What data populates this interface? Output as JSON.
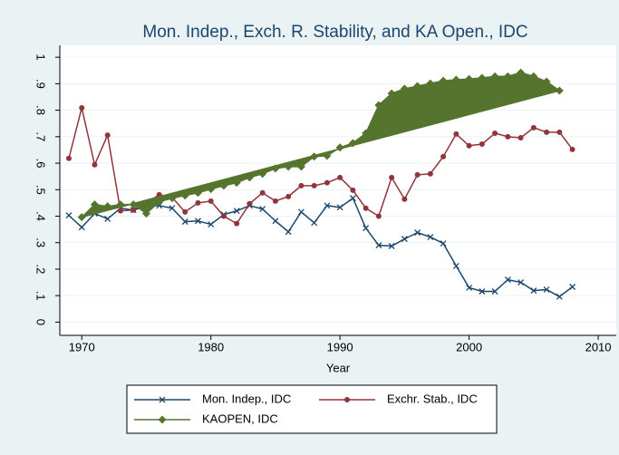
{
  "chart_data": {
    "type": "line",
    "title": "Mon. Indep., Exch. R. Stability, and KA Open., IDC",
    "x_label": "Year",
    "x": [
      1969,
      1970,
      1971,
      1972,
      1973,
      1974,
      1975,
      1976,
      1977,
      1978,
      1979,
      1980,
      1981,
      1982,
      1983,
      1984,
      1985,
      1986,
      1987,
      1988,
      1989,
      1990,
      1991,
      1992,
      1993,
      1994,
      1995,
      1996,
      1997,
      1998,
      1999,
      2000,
      2001,
      2002,
      2003,
      2004,
      2005,
      2006,
      2007,
      2008
    ],
    "series": [
      {
        "name": "Mon. Indep., IDC",
        "color": "#1a476f",
        "marker": "x",
        "values": [
          0.403,
          0.358,
          0.41,
          0.39,
          0.43,
          0.423,
          0.437,
          0.44,
          0.43,
          0.379,
          0.382,
          0.369,
          0.406,
          0.42,
          0.44,
          0.427,
          0.382,
          0.341,
          0.416,
          0.375,
          0.44,
          0.433,
          0.468,
          0.355,
          0.29,
          0.287,
          0.314,
          0.338,
          0.321,
          0.297,
          0.212,
          0.13,
          0.116,
          0.116,
          0.16,
          0.15,
          0.119,
          0.123,
          0.096,
          0.133
        ]
      },
      {
        "name": "Exchr. Stab., IDC",
        "color": "#90353b",
        "marker": "circle",
        "values": [
          0.618,
          0.809,
          0.594,
          0.706,
          0.42,
          0.423,
          0.45,
          0.481,
          0.471,
          0.416,
          0.45,
          0.457,
          0.4,
          0.372,
          0.447,
          0.488,
          0.457,
          0.474,
          0.515,
          0.515,
          0.526,
          0.546,
          0.498,
          0.43,
          0.4,
          0.546,
          0.464,
          0.556,
          0.56,
          0.625,
          0.71,
          0.666,
          0.672,
          0.713,
          0.7,
          0.696,
          0.734,
          0.717,
          0.717,
          0.652
        ]
      },
      {
        "name": "KAOPEN, IDC",
        "color": "#55752f",
        "marker": "diamond",
        "closed": true,
        "values": [
          null,
          0.396,
          0.444,
          0.437,
          0.444,
          0.444,
          0.41,
          0.454,
          0.468,
          0.478,
          0.488,
          0.502,
          0.515,
          0.526,
          0.546,
          0.56,
          0.58,
          0.587,
          0.587,
          0.625,
          0.628,
          0.659,
          0.676,
          0.713,
          0.819,
          0.863,
          0.881,
          0.891,
          0.901,
          0.911,
          0.915,
          0.918,
          0.922,
          0.928,
          0.928,
          0.942,
          0.928,
          0.908,
          0.874,
          null
        ]
      }
    ],
    "xlim": [
      1968.3,
      2011.4
    ],
    "xticks": [
      1970,
      1980,
      1990,
      2000,
      2010
    ],
    "ylim": [
      -0.05,
      1.045
    ],
    "yticks": [
      0,
      {
        "value": 0.1,
        "label": ".1"
      },
      {
        "value": 0.2,
        "label": ".2"
      },
      {
        "value": 0.3,
        "label": ".3"
      },
      {
        "value": 0.4,
        "label": ".4"
      },
      {
        "value": 0.5,
        "label": ".5"
      },
      {
        "value": 0.6,
        "label": ".6"
      },
      {
        "value": 0.7,
        "label": ".7"
      },
      {
        "value": 0.8,
        "label": ".8"
      },
      {
        "value": 0.9,
        "label": ".9"
      },
      1
    ],
    "grid": true
  }
}
